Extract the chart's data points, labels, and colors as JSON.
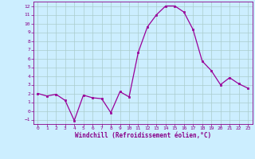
{
  "x": [
    0,
    1,
    2,
    3,
    4,
    5,
    6,
    7,
    8,
    9,
    10,
    11,
    12,
    13,
    14,
    15,
    16,
    17,
    18,
    19,
    20,
    21,
    22,
    23
  ],
  "y": [
    2.0,
    1.7,
    1.9,
    1.2,
    -1.1,
    1.8,
    1.5,
    1.4,
    -0.2,
    2.2,
    1.6,
    6.7,
    9.6,
    11.0,
    12.0,
    12.0,
    11.3,
    9.3,
    5.7,
    4.6,
    3.0,
    3.8,
    3.1,
    2.6
  ],
  "line_color": "#990099",
  "marker_color": "#990099",
  "bg_color": "#cceeff",
  "grid_color": "#aacccc",
  "xlabel": "Windchill (Refroidissement éolien,°C)",
  "xlabel_color": "#880088",
  "tick_color": "#880088",
  "ylim": [
    -1.5,
    12.5
  ],
  "xlim": [
    -0.5,
    23.5
  ],
  "yticks": [
    -1,
    0,
    1,
    2,
    3,
    4,
    5,
    6,
    7,
    8,
    9,
    10,
    11,
    12
  ],
  "xticks": [
    0,
    1,
    2,
    3,
    4,
    5,
    6,
    7,
    8,
    9,
    10,
    11,
    12,
    13,
    14,
    15,
    16,
    17,
    18,
    19,
    20,
    21,
    22,
    23
  ],
  "figsize": [
    3.2,
    2.0
  ],
  "dpi": 100
}
